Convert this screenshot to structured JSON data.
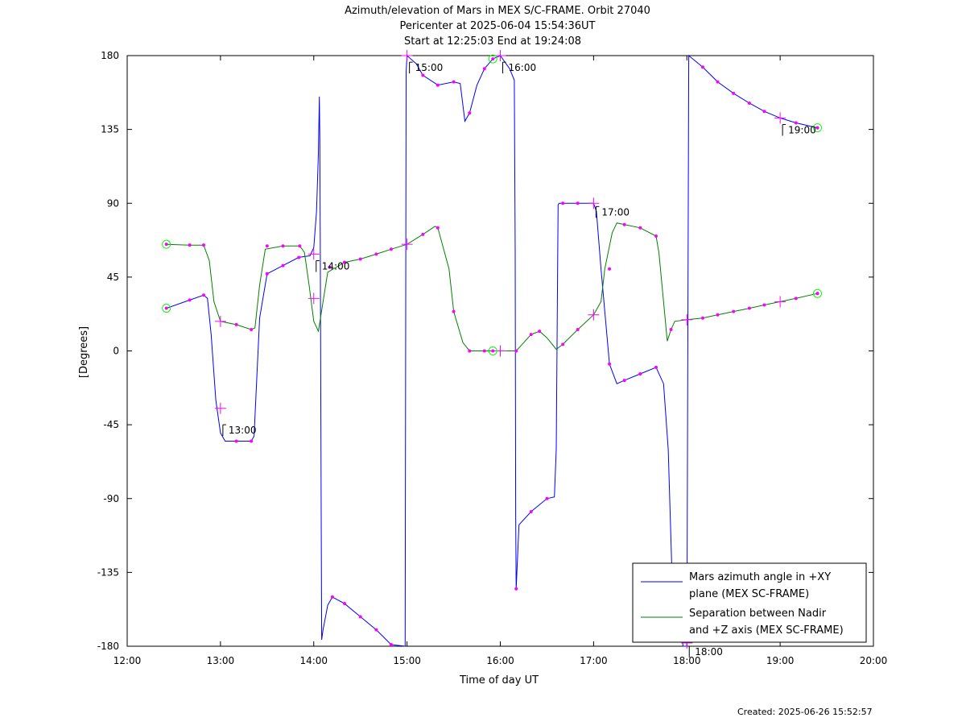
{
  "chart_data": {
    "type": "line",
    "title": "Azimuth/elevation of Mars in MEX S/C-FRAME.  Orbit 27040",
    "subtitle_1": "Pericenter at 2025-06-04 15:54:36UT",
    "subtitle_2": "Start at 12:25:03 End at 19:24:08",
    "xlabel": "Time of day UT",
    "ylabel": "[Degrees]",
    "xlim": [
      12,
      20
    ],
    "ylim": [
      -180,
      180
    ],
    "xticks": [
      {
        "v": 12,
        "label": "12:00"
      },
      {
        "v": 13,
        "label": "13:00"
      },
      {
        "v": 14,
        "label": "14:00"
      },
      {
        "v": 15,
        "label": "15:00"
      },
      {
        "v": 16,
        "label": "16:00"
      },
      {
        "v": 17,
        "label": "17:00"
      },
      {
        "v": 18,
        "label": "18:00"
      },
      {
        "v": 19,
        "label": "19:00"
      },
      {
        "v": 20,
        "label": "20:00"
      }
    ],
    "yticks": [
      {
        "v": 180,
        "label": "180"
      },
      {
        "v": 135,
        "label": "135"
      },
      {
        "v": 90,
        "label": "90"
      },
      {
        "v": 45,
        "label": "45"
      },
      {
        "v": 0,
        "label": "0"
      },
      {
        "v": -45,
        "label": "-45"
      },
      {
        "v": -90,
        "label": "-90"
      },
      {
        "v": -135,
        "label": "-135"
      },
      {
        "v": -180,
        "label": "-180"
      }
    ],
    "grid": false,
    "legend_position": "bottom-right",
    "series": [
      {
        "name_line1": "Mars azimuth angle in +XY",
        "name_line2": "plane (MEX SC-FRAME)",
        "color": "#0000ff",
        "points": [
          [
            12.42,
            26
          ],
          [
            12.67,
            31
          ],
          [
            12.82,
            34
          ],
          [
            12.86,
            32
          ],
          [
            12.9,
            10
          ],
          [
            12.95,
            -30
          ],
          [
            13.0,
            -50
          ],
          [
            13.05,
            -55
          ],
          [
            13.17,
            -55
          ],
          [
            13.33,
            -55
          ],
          [
            13.36,
            -52
          ],
          [
            13.42,
            20
          ],
          [
            13.5,
            47
          ],
          [
            13.67,
            52
          ],
          [
            13.84,
            57
          ],
          [
            13.96,
            58
          ],
          [
            14.0,
            63
          ],
          [
            14.03,
            85
          ],
          [
            14.05,
            120
          ],
          [
            14.06,
            155
          ],
          [
            14.065,
            130
          ],
          [
            14.07,
            60
          ],
          [
            14.08,
            -100
          ],
          [
            14.085,
            -176
          ],
          [
            14.1,
            -170
          ],
          [
            14.15,
            -155
          ],
          [
            14.2,
            -150
          ],
          [
            14.33,
            -154
          ],
          [
            14.5,
            -162
          ],
          [
            14.67,
            -170
          ],
          [
            14.83,
            -179
          ],
          [
            14.98,
            -185
          ],
          [
            14.985,
            0
          ],
          [
            14.99,
            170
          ],
          [
            15.0,
            180
          ],
          [
            15.1,
            175
          ],
          [
            15.17,
            168
          ],
          [
            15.33,
            162
          ],
          [
            15.5,
            164
          ],
          [
            15.57,
            163
          ],
          [
            15.62,
            140
          ],
          [
            15.67,
            145
          ],
          [
            15.75,
            162
          ],
          [
            15.83,
            172
          ],
          [
            15.92,
            178
          ],
          [
            16.0,
            180
          ],
          [
            16.1,
            172
          ],
          [
            16.15,
            165
          ],
          [
            16.16,
            60
          ],
          [
            16.165,
            -100
          ],
          [
            16.17,
            -145
          ],
          [
            16.2,
            -106
          ],
          [
            16.33,
            -98
          ],
          [
            16.5,
            -90
          ],
          [
            16.58,
            -89
          ],
          [
            16.6,
            -60
          ],
          [
            16.62,
            89
          ],
          [
            16.63,
            90
          ],
          [
            16.83,
            90
          ],
          [
            17.0,
            90
          ],
          [
            17.03,
            85
          ],
          [
            17.08,
            50
          ],
          [
            17.17,
            -8
          ],
          [
            17.25,
            -20
          ],
          [
            17.33,
            -18
          ],
          [
            17.5,
            -14
          ],
          [
            17.67,
            -10
          ],
          [
            17.75,
            -20
          ],
          [
            17.8,
            -60
          ],
          [
            17.84,
            -135
          ],
          [
            17.85,
            -145
          ],
          [
            17.96,
            -180
          ],
          [
            17.98,
            -182
          ],
          [
            18.0,
            -185
          ],
          [
            18.01,
            0
          ],
          [
            18.02,
            180
          ],
          [
            18.17,
            173
          ],
          [
            18.33,
            164
          ],
          [
            18.5,
            157
          ],
          [
            18.67,
            151
          ],
          [
            18.83,
            146
          ],
          [
            19.0,
            142
          ],
          [
            19.17,
            139
          ],
          [
            19.4,
            136
          ]
        ]
      },
      {
        "name_line1": "Separation between Nadir",
        "name_line2": "and +Z axis (MEX SC-FRAME)",
        "color": "#008000",
        "points": [
          [
            12.42,
            65
          ],
          [
            12.67,
            64.5
          ],
          [
            12.82,
            64.5
          ],
          [
            12.88,
            55
          ],
          [
            12.93,
            30
          ],
          [
            13.0,
            18
          ],
          [
            13.17,
            16
          ],
          [
            13.33,
            13
          ],
          [
            13.37,
            14
          ],
          [
            13.42,
            40
          ],
          [
            13.48,
            62
          ],
          [
            13.67,
            64
          ],
          [
            13.85,
            64
          ],
          [
            13.9,
            60
          ],
          [
            13.95,
            40
          ],
          [
            14.0,
            18
          ],
          [
            14.05,
            12
          ],
          [
            14.1,
            30
          ],
          [
            14.15,
            48
          ],
          [
            14.33,
            54
          ],
          [
            14.5,
            56
          ],
          [
            14.67,
            59
          ],
          [
            14.83,
            62
          ],
          [
            15.0,
            65
          ],
          [
            15.17,
            71
          ],
          [
            15.3,
            76
          ],
          [
            15.33,
            75
          ],
          [
            15.45,
            50
          ],
          [
            15.5,
            24
          ],
          [
            15.6,
            5
          ],
          [
            15.67,
            0
          ],
          [
            15.83,
            0
          ],
          [
            15.92,
            0
          ],
          [
            16.0,
            0
          ],
          [
            16.17,
            0
          ],
          [
            16.25,
            5
          ],
          [
            16.33,
            10
          ],
          [
            16.42,
            12
          ],
          [
            16.5,
            8
          ],
          [
            16.6,
            1
          ],
          [
            16.67,
            4
          ],
          [
            16.83,
            13
          ],
          [
            17.0,
            22
          ],
          [
            17.08,
            30
          ],
          [
            17.12,
            50
          ],
          [
            17.2,
            72
          ],
          [
            17.25,
            78
          ],
          [
            17.5,
            75
          ],
          [
            17.67,
            70
          ],
          [
            17.7,
            60
          ],
          [
            17.75,
            30
          ],
          [
            17.79,
            6
          ],
          [
            17.83,
            13
          ],
          [
            17.87,
            18
          ],
          [
            18.0,
            19
          ],
          [
            18.17,
            20
          ],
          [
            18.33,
            22
          ],
          [
            18.5,
            24
          ],
          [
            18.67,
            26
          ],
          [
            18.83,
            28
          ],
          [
            19.0,
            30
          ],
          [
            19.17,
            32
          ],
          [
            19.4,
            35
          ]
        ]
      }
    ],
    "markers": {
      "azimuth_dots": [
        [
          12.67,
          31
        ],
        [
          12.82,
          34
        ],
        [
          13.17,
          -55
        ],
        [
          13.33,
          -55
        ],
        [
          13.5,
          47
        ],
        [
          13.67,
          52
        ],
        [
          13.84,
          57
        ],
        [
          14.2,
          -150
        ],
        [
          14.33,
          -154
        ],
        [
          14.5,
          -162
        ],
        [
          14.67,
          -170
        ],
        [
          14.83,
          -179
        ],
        [
          15.17,
          168
        ],
        [
          15.33,
          162
        ],
        [
          15.5,
          164
        ],
        [
          15.67,
          145
        ],
        [
          15.83,
          172
        ],
        [
          16.17,
          -145
        ],
        [
          16.33,
          -98
        ],
        [
          16.5,
          -90
        ],
        [
          16.67,
          90
        ],
        [
          16.83,
          90
        ],
        [
          17.17,
          -8
        ],
        [
          17.33,
          -18
        ],
        [
          17.5,
          -14
        ],
        [
          17.67,
          -10
        ],
        [
          17.83,
          -135
        ],
        [
          18.17,
          173
        ],
        [
          18.33,
          164
        ],
        [
          18.5,
          157
        ],
        [
          18.67,
          151
        ],
        [
          18.83,
          146
        ],
        [
          19.17,
          139
        ],
        [
          19.4,
          136
        ]
      ],
      "separation_dots": [
        [
          12.67,
          64.5
        ],
        [
          12.82,
          64.5
        ],
        [
          13.17,
          16
        ],
        [
          13.33,
          13
        ],
        [
          13.5,
          64
        ],
        [
          13.67,
          64
        ],
        [
          13.85,
          64
        ],
        [
          14.17,
          51
        ],
        [
          14.33,
          54
        ],
        [
          14.5,
          56
        ],
        [
          14.67,
          59
        ],
        [
          14.83,
          62
        ],
        [
          15.17,
          71
        ],
        [
          15.33,
          75
        ],
        [
          15.5,
          24
        ],
        [
          15.67,
          0
        ],
        [
          15.83,
          0
        ],
        [
          16.17,
          0
        ],
        [
          16.33,
          10
        ],
        [
          16.42,
          12
        ],
        [
          16.67,
          4
        ],
        [
          16.83,
          13
        ],
        [
          17.17,
          50
        ],
        [
          17.33,
          77
        ],
        [
          17.5,
          75
        ],
        [
          17.67,
          70
        ],
        [
          17.83,
          13
        ],
        [
          18.17,
          20
        ],
        [
          18.33,
          22
        ],
        [
          18.5,
          24
        ],
        [
          18.67,
          26
        ],
        [
          18.83,
          28
        ],
        [
          19.17,
          32
        ],
        [
          19.4,
          35
        ]
      ],
      "hour_crosses": [
        [
          13.0,
          18
        ],
        [
          13.0,
          -35
        ],
        [
          14.0,
          32
        ],
        [
          14.0,
          59
        ],
        [
          15.0,
          65
        ],
        [
          15.0,
          180
        ],
        [
          16.0,
          180
        ],
        [
          16.0,
          0
        ],
        [
          17.0,
          90
        ],
        [
          17.0,
          22
        ],
        [
          18.0,
          -178
        ],
        [
          18.0,
          19
        ],
        [
          19.0,
          142
        ],
        [
          19.0,
          30
        ]
      ],
      "start_end_circles": [
        [
          12.42,
          26
        ],
        [
          12.42,
          65
        ],
        [
          15.92,
          178
        ],
        [
          15.92,
          0
        ],
        [
          19.4,
          136
        ],
        [
          19.4,
          35
        ]
      ]
    },
    "hour_labels": [
      {
        "x": 13.0,
        "y": -45,
        "label": "13:00"
      },
      {
        "x": 14.0,
        "y": 55,
        "label": "14:00"
      },
      {
        "x": 15.0,
        "y": 176,
        "label": "15:00"
      },
      {
        "x": 16.0,
        "y": 176,
        "label": "16:00"
      },
      {
        "x": 17.0,
        "y": 88,
        "label": "17:00"
      },
      {
        "x": 18.0,
        "y": -182,
        "label": "18:00"
      },
      {
        "x": 19.0,
        "y": 138,
        "label": "19:00"
      }
    ],
    "marker_color": "#ff00ff",
    "circle_color": "#00ff00"
  },
  "footer": {
    "created": "Created: 2025-06-26 15:52:57"
  }
}
